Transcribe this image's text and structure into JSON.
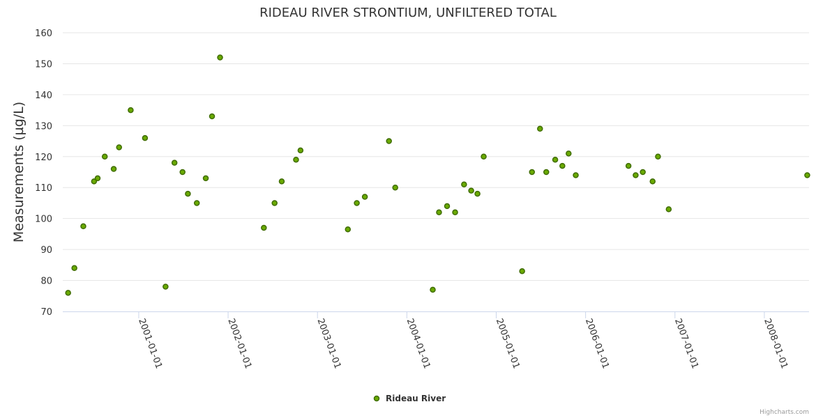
{
  "chart_data": {
    "type": "scatter",
    "title": "RIDEAU RIVER STRONTIUM, UNFILTERED TOTAL",
    "xlabel": "",
    "ylabel": "Measurements (µg/L)",
    "ylim": [
      70,
      160
    ],
    "yticks": [
      "70",
      "80",
      "90",
      "100",
      "110",
      "120",
      "130",
      "140",
      "150",
      "160"
    ],
    "xticks": [
      {
        "label": "2001-01-01",
        "t": 2001.0
      },
      {
        "label": "2002-01-01",
        "t": 2002.0
      },
      {
        "label": "2003-01-01",
        "t": 2003.0
      },
      {
        "label": "2004-01-01",
        "t": 2004.0
      },
      {
        "label": "2005-01-01",
        "t": 2005.0
      },
      {
        "label": "2006-01-01",
        "t": 2006.0
      },
      {
        "label": "2007-01-01",
        "t": 2007.0
      },
      {
        "label": "2008-01-01",
        "t": 2008.0
      }
    ],
    "xlim": [
      2000.15,
      2008.5
    ],
    "grid": true,
    "legend": "bottom-center",
    "color": "#6aaa00",
    "series": [
      {
        "name": "Rideau River",
        "x": [
          2000.21,
          2000.28,
          2000.38,
          2000.5,
          2000.54,
          2000.62,
          2000.72,
          2000.78,
          2000.91,
          2001.07,
          2001.3,
          2001.4,
          2001.49,
          2001.55,
          2001.65,
          2001.75,
          2001.82,
          2001.91,
          2002.4,
          2002.52,
          2002.6,
          2002.76,
          2002.81,
          2003.34,
          2003.44,
          2003.53,
          2003.8,
          2003.87,
          2004.29,
          2004.36,
          2004.45,
          2004.54,
          2004.64,
          2004.72,
          2004.79,
          2004.86,
          2005.29,
          2005.4,
          2005.49,
          2005.56,
          2005.66,
          2005.74,
          2005.81,
          2005.89,
          2006.48,
          2006.56,
          2006.64,
          2006.75,
          2006.81,
          2006.93,
          2008.48
        ],
        "y": [
          76,
          84,
          97.5,
          112,
          113,
          120,
          116,
          123,
          135,
          126,
          78,
          118,
          115,
          108,
          105,
          113,
          133,
          152,
          97,
          105,
          112,
          119,
          122,
          96.5,
          105,
          107,
          125,
          110,
          77,
          102,
          104,
          102,
          111,
          109,
          108,
          120,
          83,
          115,
          129,
          115,
          119,
          117,
          121,
          114,
          117,
          114,
          115,
          112,
          120,
          103,
          114
        ]
      }
    ]
  },
  "credits": "Highcharts.com"
}
